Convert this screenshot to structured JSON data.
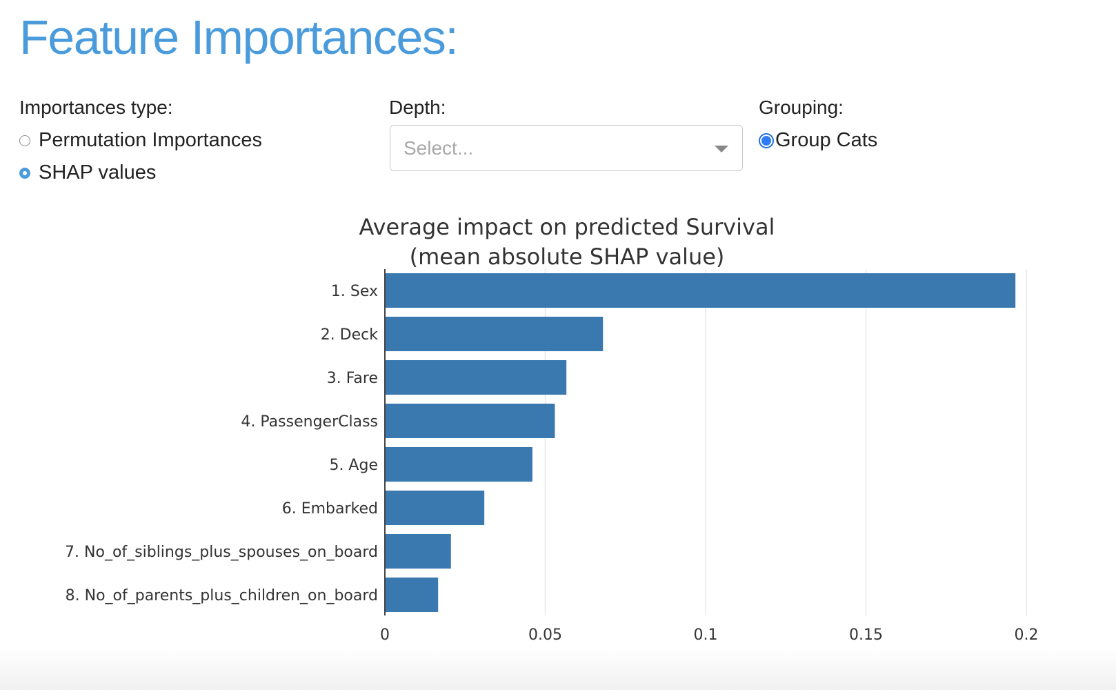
{
  "header": {
    "title": "Feature Importances:"
  },
  "controls": {
    "importances_type": {
      "label": "Importances type:",
      "options": [
        {
          "label": "Permutation Importances",
          "checked": false
        },
        {
          "label": "SHAP values",
          "checked": true
        }
      ]
    },
    "depth": {
      "label": "Depth:",
      "placeholder": "Select..."
    },
    "grouping": {
      "label": "Grouping:",
      "options": [
        {
          "label": "Group Cats",
          "checked": true
        }
      ]
    }
  },
  "colors": {
    "accent": "#4a9bdc",
    "bar": "#3a78b0",
    "grid": "#e8e8e8"
  },
  "icons": {
    "select_caret": "chevron-down-icon"
  },
  "chart_data": {
    "type": "bar",
    "orientation": "horizontal",
    "title": "Average impact on predicted Survival",
    "subtitle": "(mean absolute SHAP value)",
    "categories": [
      "1. Sex",
      "2. Deck",
      "3. Fare",
      "4. PassengerClass",
      "5. Age",
      "6. Embarked",
      "7. No_of_siblings_plus_spouses_on_board",
      "8. No_of_parents_plus_children_on_board"
    ],
    "values": [
      0.1966,
      0.068,
      0.0566,
      0.053,
      0.046,
      0.031,
      0.0206,
      0.0166
    ],
    "xlim": [
      0,
      0.2
    ],
    "xticks": [
      0,
      0.05,
      0.1,
      0.15,
      0.2
    ],
    "xtick_labels": [
      "0",
      "0.05",
      "0.1",
      "0.15",
      "0.2"
    ],
    "grid": true,
    "xlabel": "",
    "ylabel": ""
  }
}
